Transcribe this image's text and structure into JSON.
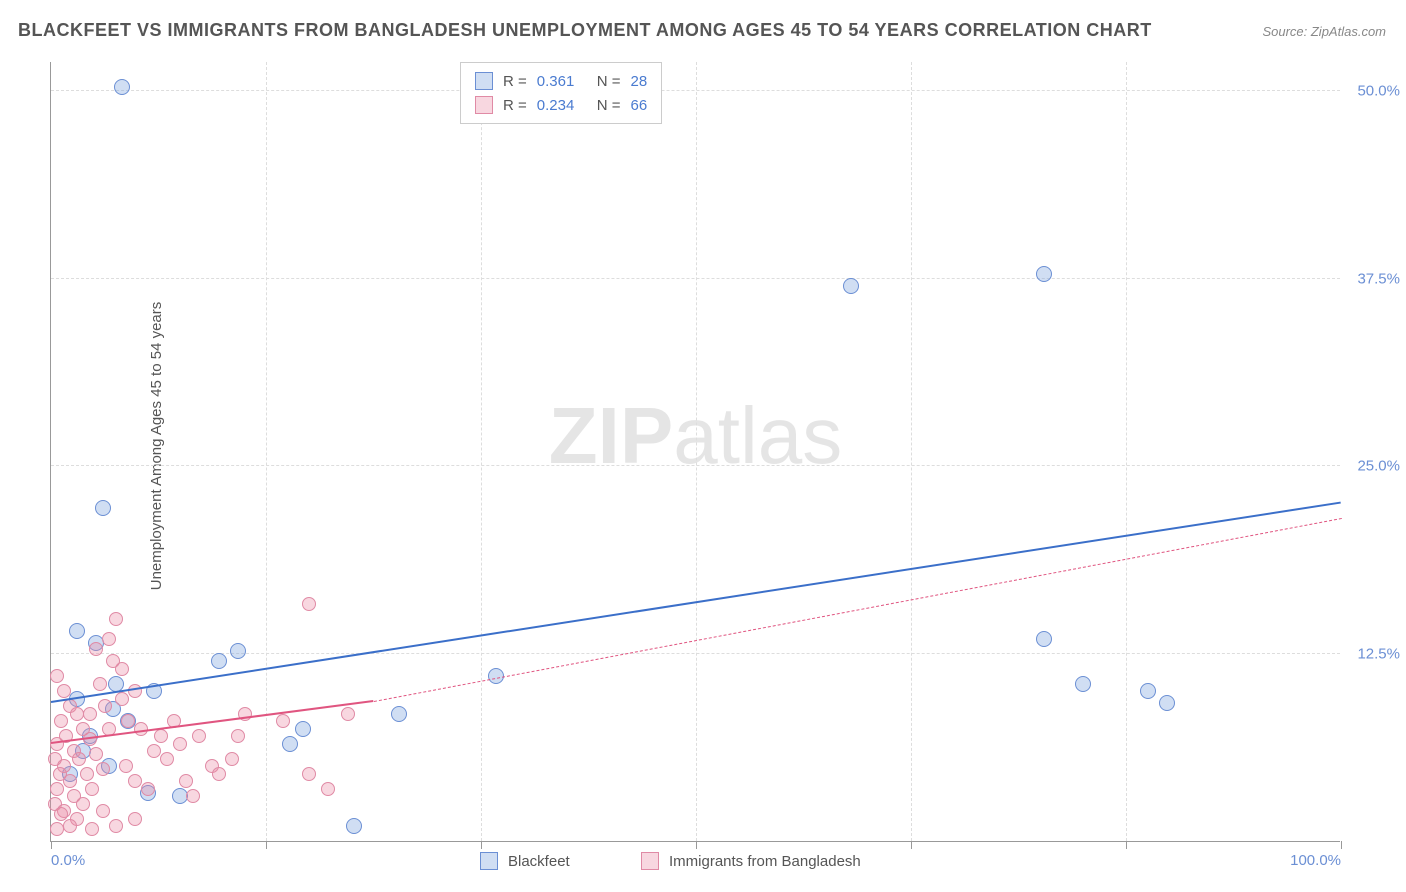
{
  "title": "BLACKFEET VS IMMIGRANTS FROM BANGLADESH UNEMPLOYMENT AMONG AGES 45 TO 54 YEARS CORRELATION CHART",
  "source": "Source: ZipAtlas.com",
  "watermark_bold": "ZIP",
  "watermark_rest": "atlas",
  "yaxis_title": "Unemployment Among Ages 45 to 54 years",
  "chart": {
    "type": "scatter",
    "background_color": "#ffffff",
    "grid_color": "#dddddd",
    "border_color": "#999999",
    "xlim": [
      0,
      100
    ],
    "ylim": [
      0,
      52
    ],
    "x_ticks": [
      0,
      16.67,
      33.33,
      50,
      66.67,
      83.33,
      100
    ],
    "x_tick_labels": {
      "0": "0.0%",
      "100": "100.0%"
    },
    "y_gridlines": [
      12.5,
      25,
      37.5,
      50
    ],
    "y_tick_labels": {
      "12.5": "12.5%",
      "25": "25.0%",
      "37.5": "37.5%",
      "50": "50.0%"
    },
    "tick_label_color": "#6b8fd4",
    "tick_label_fontsize": 15,
    "axis_title_fontsize": 15,
    "watermark_fontsize": 80,
    "series": [
      {
        "name": "Blackfeet",
        "fill_color": "rgba(120,160,220,0.35)",
        "stroke_color": "#6b8fd4",
        "marker_size": 16,
        "r_value": "0.361",
        "n_value": "28",
        "trend": {
          "x1": 0,
          "y1": 9.2,
          "x2": 100,
          "y2": 22.5,
          "color": "#3b6fc9",
          "width": 2.5,
          "dash": "none"
        },
        "trend_extrapolate": null,
        "points": [
          [
            5.5,
            50.3
          ],
          [
            4.0,
            22.2
          ],
          [
            2.0,
            14.0
          ],
          [
            3.5,
            13.2
          ],
          [
            4.8,
            8.8
          ],
          [
            6.0,
            8.0
          ],
          [
            13.0,
            12.0
          ],
          [
            14.5,
            12.7
          ],
          [
            7.5,
            3.2
          ],
          [
            10.0,
            3.0
          ],
          [
            18.5,
            6.5
          ],
          [
            19.5,
            7.5
          ],
          [
            27.0,
            8.5
          ],
          [
            23.5,
            1.0
          ],
          [
            34.5,
            11.0
          ],
          [
            62.0,
            37.0
          ],
          [
            77.0,
            37.8
          ],
          [
            77.0,
            13.5
          ],
          [
            80.0,
            10.5
          ],
          [
            85.0,
            10.0
          ],
          [
            86.5,
            9.2
          ],
          [
            5.0,
            10.5
          ],
          [
            3.0,
            7.0
          ],
          [
            1.5,
            4.5
          ],
          [
            2.5,
            6.0
          ],
          [
            4.5,
            5.0
          ],
          [
            8.0,
            10.0
          ],
          [
            2.0,
            9.5
          ]
        ]
      },
      {
        "name": "Immigrants from Bangladesh",
        "fill_color": "rgba(235,140,165,0.35)",
        "stroke_color": "#e08aa5",
        "marker_size": 14,
        "r_value": "0.234",
        "n_value": "66",
        "trend": {
          "x1": 0,
          "y1": 6.5,
          "x2": 25,
          "y2": 9.3,
          "color": "#e05580",
          "width": 2.5,
          "dash": "none"
        },
        "trend_extrapolate": {
          "x1": 25,
          "y1": 9.3,
          "x2": 100,
          "y2": 21.5,
          "color": "#e05580",
          "width": 1,
          "dash": "4,4"
        },
        "points": [
          [
            0.5,
            11.0
          ],
          [
            1.0,
            10.0
          ],
          [
            1.5,
            9.0
          ],
          [
            0.8,
            8.0
          ],
          [
            2.0,
            8.5
          ],
          [
            1.2,
            7.0
          ],
          [
            0.5,
            6.5
          ],
          [
            1.8,
            6.0
          ],
          [
            2.5,
            7.5
          ],
          [
            3.0,
            6.8
          ],
          [
            0.3,
            5.5
          ],
          [
            1.0,
            5.0
          ],
          [
            2.2,
            5.5
          ],
          [
            3.5,
            5.8
          ],
          [
            0.7,
            4.5
          ],
          [
            1.5,
            4.0
          ],
          [
            2.8,
            4.5
          ],
          [
            4.0,
            4.8
          ],
          [
            0.5,
            3.5
          ],
          [
            1.8,
            3.0
          ],
          [
            3.2,
            3.5
          ],
          [
            0.3,
            2.5
          ],
          [
            1.0,
            2.0
          ],
          [
            2.5,
            2.5
          ],
          [
            3.5,
            12.8
          ],
          [
            4.5,
            13.5
          ],
          [
            5.0,
            14.8
          ],
          [
            3.8,
            10.5
          ],
          [
            4.2,
            9.0
          ],
          [
            5.5,
            9.5
          ],
          [
            6.0,
            8.0
          ],
          [
            6.5,
            10.0
          ],
          [
            7.0,
            7.5
          ],
          [
            5.8,
            5.0
          ],
          [
            6.5,
            4.0
          ],
          [
            7.5,
            3.5
          ],
          [
            8.0,
            6.0
          ],
          [
            8.5,
            7.0
          ],
          [
            9.0,
            5.5
          ],
          [
            9.5,
            8.0
          ],
          [
            10.0,
            6.5
          ],
          [
            10.5,
            4.0
          ],
          [
            11.0,
            3.0
          ],
          [
            11.5,
            7.0
          ],
          [
            12.5,
            5.0
          ],
          [
            13.0,
            4.5
          ],
          [
            14.0,
            5.5
          ],
          [
            14.5,
            7.0
          ],
          [
            15.0,
            8.5
          ],
          [
            18.0,
            8.0
          ],
          [
            20.0,
            4.5
          ],
          [
            21.5,
            3.5
          ],
          [
            20.0,
            15.8
          ],
          [
            23.0,
            8.5
          ],
          [
            6.5,
            1.5
          ],
          [
            5.0,
            1.0
          ],
          [
            3.2,
            0.8
          ],
          [
            4.0,
            2.0
          ],
          [
            2.0,
            1.5
          ],
          [
            1.5,
            1.0
          ],
          [
            0.8,
            1.8
          ],
          [
            0.5,
            0.8
          ],
          [
            4.5,
            7.5
          ],
          [
            3.0,
            8.5
          ],
          [
            5.5,
            11.5
          ],
          [
            4.8,
            12.0
          ]
        ]
      }
    ]
  },
  "legend_top": {
    "r_label": "R  =",
    "n_label": "N  ="
  },
  "legend_bottom": [
    {
      "label": "Blackfeet",
      "fill": "rgba(120,160,220,0.35)",
      "stroke": "#6b8fd4"
    },
    {
      "label": "Immigrants from Bangladesh",
      "fill": "rgba(235,140,165,0.35)",
      "stroke": "#e08aa5"
    }
  ]
}
